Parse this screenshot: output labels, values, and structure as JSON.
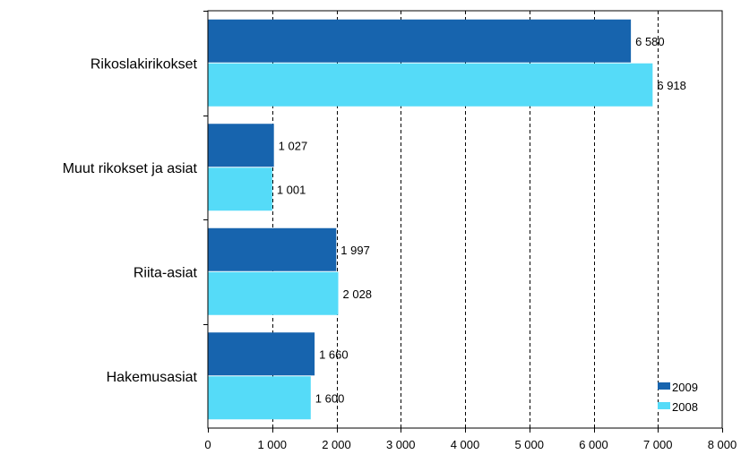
{
  "chart_data": {
    "type": "bar",
    "orientation": "horizontal",
    "title": "",
    "xlabel": "",
    "ylabel": "",
    "categories": [
      "Rikoslakirikokset",
      "Muut rikokset ja asiat",
      "Riita-asiat",
      "Hakemusasiat"
    ],
    "series": [
      {
        "name": "2009",
        "color": "#1764ae",
        "values": [
          6580,
          1027,
          1997,
          1660
        ],
        "labels": [
          "6 580",
          "1 027",
          "1 997",
          "1 660"
        ]
      },
      {
        "name": "2008",
        "color": "#55dbf8",
        "values": [
          6918,
          1001,
          2028,
          1600
        ],
        "labels": [
          "6 918",
          "1 001",
          "2 028",
          "1 600"
        ]
      }
    ],
    "xlim": [
      0,
      8000
    ],
    "xticks": [
      0,
      1000,
      2000,
      3000,
      4000,
      5000,
      6000,
      7000,
      8000
    ],
    "xtick_labels": [
      "0",
      "1 000",
      "2 000",
      "3 000",
      "4 000",
      "5 000",
      "6 000",
      "7 000",
      "8 000"
    ],
    "grid": "vertical dashed",
    "legend_position": "bottom-right"
  }
}
